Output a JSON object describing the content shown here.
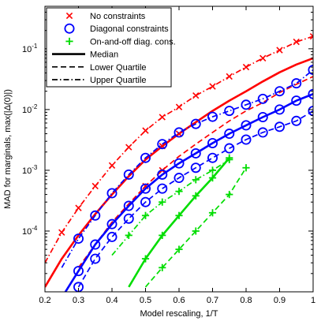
{
  "chart_data": {
    "type": "line",
    "xlabel": "Model rescaling, 1/T",
    "ylabel": "MAD for marginals, max(|Δ(0)|)",
    "xlim": [
      0.2,
      1.0
    ],
    "ylim": [
      1e-05,
      0.5
    ],
    "yscale": "log",
    "grid": false,
    "legend_position": "top-left",
    "x_ticks": [
      "0.2",
      "0.3",
      "0.4",
      "0.5",
      "0.6",
      "0.7",
      "0.8",
      "0.9",
      "1"
    ],
    "y_ticks": [
      {
        "base": "10",
        "exp": "-1",
        "value": 0.1
      },
      {
        "base": "10",
        "exp": "-2",
        "value": 0.01
      },
      {
        "base": "10",
        "exp": "-3",
        "value": 0.001
      },
      {
        "base": "10",
        "exp": "-4",
        "value": 0.0001
      }
    ],
    "legend": [
      {
        "label": "No constraints",
        "marker": "x",
        "line": "none",
        "color": "#ff0000"
      },
      {
        "label": "Diagonal constraints",
        "marker": "o",
        "line": "none",
        "color": "#0000ff"
      },
      {
        "label": "On-and-off diag. cons.",
        "marker": "+",
        "line": "none",
        "color": "#00dd00"
      },
      {
        "label": "Median",
        "marker": "none",
        "line": "solid",
        "color": "#000000"
      },
      {
        "label": "Lower Quartile",
        "marker": "none",
        "line": "dashed",
        "color": "#000000"
      },
      {
        "label": "Upper Quartile",
        "marker": "none",
        "line": "dashdot",
        "color": "#000000"
      }
    ],
    "series": [
      {
        "group": "No constraints",
        "stat": "upper",
        "color": "#ff0000",
        "style": "dashdot",
        "marker": "x",
        "x": [
          0.2,
          0.25,
          0.3,
          0.35,
          0.4,
          0.45,
          0.5,
          0.55,
          0.6,
          0.65,
          0.7,
          0.75,
          0.8,
          0.85,
          0.9,
          0.95,
          1.0
        ],
        "y": [
          3e-05,
          9.5e-05,
          0.00024,
          0.00055,
          0.0012,
          0.0024,
          0.0045,
          0.0075,
          0.011,
          0.017,
          0.024,
          0.035,
          0.05,
          0.07,
          0.095,
          0.13,
          0.16
        ],
        "marker_x": [
          0.25,
          0.3,
          0.35,
          0.4,
          0.45,
          0.5,
          0.55,
          0.6,
          0.65,
          0.7,
          0.75,
          0.8,
          0.85,
          0.9,
          0.95,
          1.0
        ],
        "marker_y": [
          9.5e-05,
          0.00024,
          0.00055,
          0.0012,
          0.0024,
          0.0045,
          0.0075,
          0.011,
          0.017,
          0.024,
          0.035,
          0.05,
          0.07,
          0.095,
          0.13,
          0.16
        ]
      },
      {
        "group": "No constraints",
        "stat": "median",
        "color": "#ff0000",
        "style": "solid",
        "marker": "x",
        "x": [
          0.2,
          0.25,
          0.3,
          0.35,
          0.4,
          0.45,
          0.5,
          0.55,
          0.6,
          0.65,
          0.7,
          0.75,
          0.8,
          0.85,
          0.9,
          0.95,
          1.0
        ],
        "y": [
          1.2e-05,
          3.5e-05,
          8.5e-05,
          0.00019,
          0.0004,
          0.0008,
          0.0015,
          0.0025,
          0.004,
          0.0062,
          0.0095,
          0.014,
          0.02,
          0.029,
          0.041,
          0.055,
          0.07
        ],
        "marker_x": [
          0.55,
          0.6
        ],
        "marker_y": [
          0.0025,
          0.004
        ]
      },
      {
        "group": "No constraints",
        "stat": "lower",
        "color": "#ff0000",
        "style": "dashed",
        "marker": "x",
        "x": [
          0.3,
          0.35,
          0.4,
          0.45,
          0.5,
          0.55,
          0.6,
          0.65,
          0.7,
          0.75,
          0.8,
          0.85,
          0.9,
          0.95,
          1.0
        ],
        "y": [
          2.5e-05,
          6e-05,
          0.00014,
          0.00028,
          0.00055,
          0.001,
          0.0017,
          0.0027,
          0.0042,
          0.0065,
          0.0095,
          0.013,
          0.019,
          0.026,
          0.035
        ],
        "marker_x": [
          0.5,
          0.55
        ],
        "marker_y": [
          0.00055,
          0.001
        ]
      },
      {
        "group": "Diagonal constraints",
        "stat": "upper",
        "color": "#0000ff",
        "style": "dashdot",
        "marker": "o",
        "x": [
          0.25,
          0.3,
          0.35,
          0.4,
          0.45,
          0.5,
          0.55,
          0.6,
          0.65,
          0.7,
          0.75,
          0.8,
          0.85,
          0.9,
          0.95,
          1.0
        ],
        "y": [
          2.5e-05,
          7.5e-05,
          0.00018,
          0.00042,
          0.00085,
          0.0016,
          0.0027,
          0.0042,
          0.0058,
          0.0076,
          0.0095,
          0.012,
          0.015,
          0.02,
          0.027,
          0.045
        ],
        "marker_x": [
          0.3,
          0.35,
          0.4,
          0.45,
          0.5,
          0.55,
          0.6,
          0.65,
          0.7,
          0.75,
          0.8,
          0.85,
          0.9,
          0.95,
          1.0
        ],
        "marker_y": [
          7.5e-05,
          0.00018,
          0.00042,
          0.00085,
          0.0016,
          0.0027,
          0.0042,
          0.0058,
          0.0076,
          0.0095,
          0.012,
          0.015,
          0.02,
          0.027,
          0.045
        ]
      },
      {
        "group": "Diagonal constraints",
        "stat": "median",
        "color": "#0000ff",
        "style": "solid",
        "marker": "o",
        "x": [
          0.25,
          0.3,
          0.35,
          0.4,
          0.45,
          0.5,
          0.55,
          0.6,
          0.65,
          0.7,
          0.75,
          0.8,
          0.85,
          0.9,
          0.95,
          1.0
        ],
        "y": [
          8e-06,
          2.2e-05,
          6e-05,
          0.00013,
          0.00026,
          0.0005,
          0.00085,
          0.0013,
          0.0019,
          0.0028,
          0.004,
          0.0055,
          0.0075,
          0.01,
          0.014,
          0.018
        ],
        "marker_x": [
          0.3,
          0.35,
          0.4,
          0.45,
          0.5,
          0.55,
          0.6,
          0.65,
          0.7,
          0.75,
          0.8,
          0.85,
          0.9,
          0.95,
          1.0
        ],
        "marker_y": [
          2.2e-05,
          6e-05,
          0.00013,
          0.00026,
          0.0005,
          0.00085,
          0.0013,
          0.0019,
          0.0028,
          0.004,
          0.0055,
          0.0075,
          0.01,
          0.014,
          0.018
        ]
      },
      {
        "group": "Diagonal constraints",
        "stat": "lower",
        "color": "#0000ff",
        "style": "dashed",
        "marker": "o",
        "x": [
          0.3,
          0.35,
          0.4,
          0.45,
          0.5,
          0.55,
          0.6,
          0.65,
          0.7,
          0.75,
          0.8,
          0.85,
          0.9,
          0.95,
          1.0
        ],
        "y": [
          1.2e-05,
          3.5e-05,
          8e-05,
          0.00016,
          0.0003,
          0.0005,
          0.00075,
          0.0011,
          0.0016,
          0.0023,
          0.0032,
          0.0042,
          0.0052,
          0.0065,
          0.0095
        ],
        "marker_x": [
          0.3,
          0.35,
          0.4,
          0.45,
          0.5,
          0.55,
          0.6,
          0.65,
          0.7,
          0.75,
          0.8,
          0.85,
          0.9,
          0.95,
          1.0
        ],
        "marker_y": [
          1.2e-05,
          3.5e-05,
          8e-05,
          0.00016,
          0.0003,
          0.0005,
          0.00075,
          0.0011,
          0.0016,
          0.0023,
          0.0032,
          0.0042,
          0.0052,
          0.0065,
          0.0095
        ]
      },
      {
        "group": "On-and-off diag. cons.",
        "stat": "upper",
        "color": "#00dd00",
        "style": "dashdot",
        "marker": "+",
        "x": [
          0.4,
          0.45,
          0.5,
          0.55,
          0.6,
          0.65,
          0.7,
          0.75
        ],
        "y": [
          4e-05,
          8.5e-05,
          0.00018,
          0.0003,
          0.00045,
          0.0007,
          0.001,
          0.0015
        ],
        "marker_x": [
          0.45,
          0.5,
          0.55,
          0.6,
          0.65,
          0.7,
          0.75
        ],
        "marker_y": [
          8.5e-05,
          0.00018,
          0.0003,
          0.00045,
          0.0007,
          0.001,
          0.0015
        ]
      },
      {
        "group": "On-and-off diag. cons.",
        "stat": "median",
        "color": "#00dd00",
        "style": "solid",
        "marker": "+",
        "x": [
          0.45,
          0.5,
          0.55,
          0.6,
          0.65,
          0.7,
          0.75
        ],
        "y": [
          1.2e-05,
          3.5e-05,
          8.5e-05,
          0.00018,
          0.00038,
          0.00075,
          0.0016
        ],
        "marker_x": [
          0.5,
          0.55,
          0.6,
          0.65,
          0.7,
          0.75
        ],
        "marker_y": [
          3.5e-05,
          8.5e-05,
          0.00018,
          0.00038,
          0.00075,
          0.0016
        ]
      },
      {
        "group": "On-and-off diag. cons.",
        "stat": "lower",
        "color": "#00dd00",
        "style": "dashed",
        "marker": "+",
        "x": [
          0.5,
          0.55,
          0.6,
          0.65,
          0.7,
          0.75,
          0.8
        ],
        "y": [
          1.2e-05,
          2.5e-05,
          5e-05,
          0.0001,
          0.0002,
          0.0004,
          0.0011
        ],
        "marker_x": [
          0.55,
          0.6,
          0.65,
          0.7,
          0.75,
          0.8
        ],
        "marker_y": [
          2.5e-05,
          5e-05,
          0.0001,
          0.0002,
          0.0004,
          0.0011
        ]
      }
    ]
  }
}
